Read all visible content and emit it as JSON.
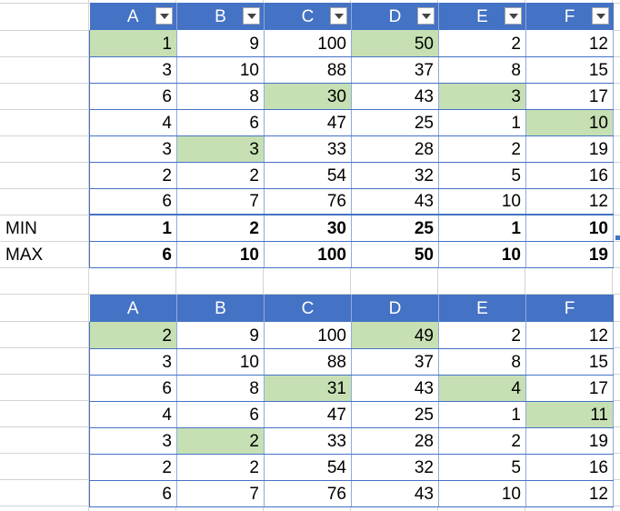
{
  "table1": {
    "headers": [
      "A",
      "B",
      "C",
      "D",
      "E",
      "F"
    ],
    "rows": [
      [
        1,
        9,
        100,
        50,
        2,
        12
      ],
      [
        3,
        10,
        88,
        37,
        8,
        15
      ],
      [
        6,
        8,
        30,
        43,
        3,
        17
      ],
      [
        4,
        6,
        47,
        25,
        1,
        10
      ],
      [
        3,
        3,
        33,
        28,
        2,
        19
      ],
      [
        2,
        2,
        54,
        32,
        5,
        16
      ],
      [
        6,
        7,
        76,
        43,
        10,
        12
      ]
    ],
    "highlight_color": "#c6e0b4",
    "highlights": [
      [
        0,
        0
      ],
      [
        0,
        3
      ],
      [
        2,
        2
      ],
      [
        2,
        4
      ],
      [
        3,
        5
      ],
      [
        4,
        1
      ]
    ],
    "min_label": "MIN",
    "max_label": "MAX",
    "min_values": [
      1,
      2,
      30,
      25,
      1,
      10
    ],
    "max_values": [
      6,
      10,
      100,
      50,
      10,
      19
    ]
  },
  "table2": {
    "headers": [
      "A",
      "B",
      "C",
      "D",
      "E",
      "F"
    ],
    "rows": [
      [
        2,
        9,
        100,
        49,
        2,
        12
      ],
      [
        3,
        10,
        88,
        37,
        8,
        15
      ],
      [
        6,
        8,
        31,
        43,
        4,
        17
      ],
      [
        4,
        6,
        47,
        25,
        1,
        11
      ],
      [
        3,
        2,
        33,
        28,
        2,
        19
      ],
      [
        2,
        2,
        54,
        32,
        5,
        16
      ],
      [
        6,
        7,
        76,
        43,
        10,
        12
      ]
    ],
    "highlight_color": "#c6e0b4",
    "highlights": [
      [
        0,
        0
      ],
      [
        0,
        3
      ],
      [
        2,
        2
      ],
      [
        2,
        4
      ],
      [
        3,
        5
      ],
      [
        4,
        1
      ]
    ]
  },
  "colors": {
    "header": "#4472c4",
    "header_text": "#ffffff",
    "grid": "#d4d4d4"
  }
}
